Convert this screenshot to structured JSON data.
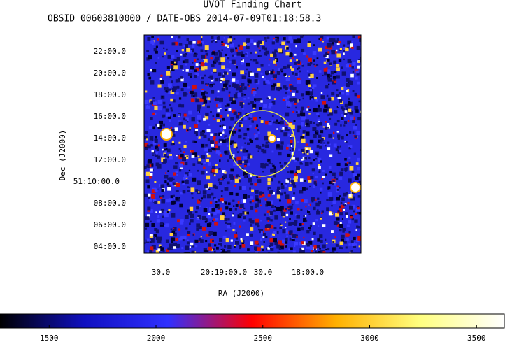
{
  "chart_data": {
    "type": "image",
    "title": "UVOT Finding Chart",
    "subtitle": "OBSID 00603810000 / DATE-OBS 2014-07-09T01:18:58.3",
    "xlabel": "RA (J2000)",
    "ylabel": "Dec (J2000)",
    "xtick_labels": [
      "30.0",
      "20:19:00.0",
      "30.0",
      "18:00.0"
    ],
    "ytick_labels": [
      "22:00.0",
      "20:00.0",
      "18:00.0",
      "16:00.0",
      "14:00.0",
      "12:00.0",
      "51:10:00.0",
      "08:00.0",
      "06:00.0",
      "04:00.0"
    ],
    "region_color": "#e8e84a",
    "colorbar": {
      "lim": [
        1270,
        3630
      ],
      "ticks": [
        1500,
        2000,
        2500,
        3000,
        3500
      ],
      "colors": [
        "#000000",
        "#1010c0",
        "#3030ff",
        "#ff0000",
        "#ffb000",
        "#ffff80",
        "#ffffff"
      ]
    }
  }
}
